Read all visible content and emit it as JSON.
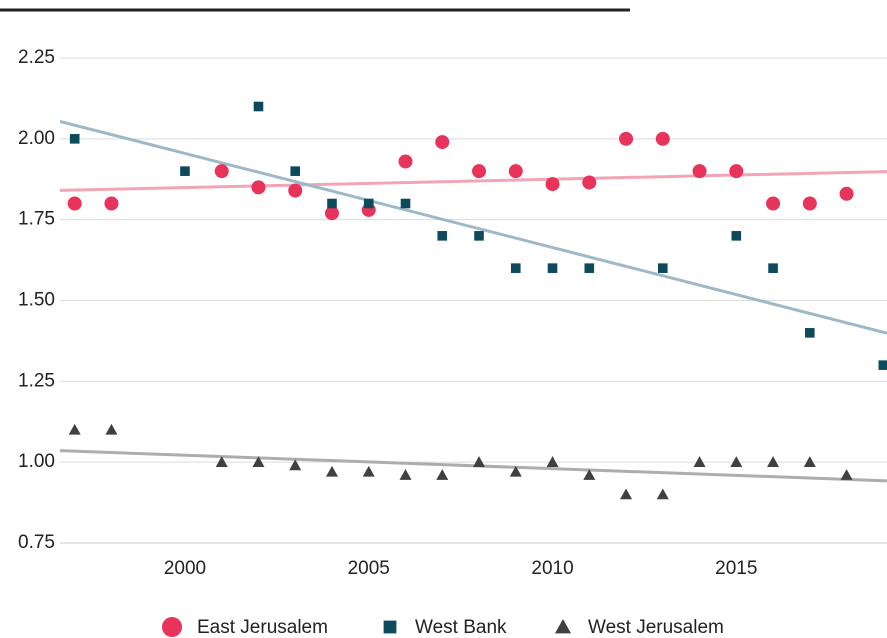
{
  "chart_data": {
    "type": "scatter",
    "xlim": [
      1996.6,
      2019.1
    ],
    "xticks": [
      2000,
      2005,
      2010,
      2015
    ],
    "ylim": [
      0.75,
      2.25
    ],
    "yticks": [
      0.75,
      {
        "value": 1,
        "label": "1.00"
      },
      1.25,
      {
        "value": 1.5,
        "label": "1.50"
      },
      1.75,
      {
        "value": 2,
        "label": "2.00"
      },
      2.25
    ],
    "grid": true,
    "trendline": true,
    "legend": "bottom",
    "series": [
      {
        "name": "East Jerusalem",
        "color": "#e8335a",
        "trend_color": "#f2a5b6",
        "marker": "circle",
        "x": [
          1997,
          1998,
          2001,
          2002,
          2003,
          2004,
          2005,
          2006,
          2007,
          2008,
          2009,
          2010,
          2011,
          2012,
          2013,
          2014,
          2015,
          2016,
          2017,
          2018
        ],
        "values": [
          1.8,
          1.8,
          1.9,
          1.85,
          1.84,
          1.77,
          1.78,
          1.93,
          1.99,
          1.9,
          1.9,
          1.86,
          1.865,
          2.0,
          2.0,
          1.9,
          1.9,
          1.8,
          1.8,
          1.83
        ]
      },
      {
        "name": "West Bank",
        "color": "#0d4a5e",
        "trend_color": "#9db9c7",
        "marker": "square",
        "x": [
          1997,
          2000,
          2002,
          2003,
          2004,
          2005,
          2006,
          2007,
          2008,
          2009,
          2010,
          2011,
          2013,
          2015,
          2016,
          2017,
          2019
        ],
        "values": [
          2.0,
          1.9,
          2.1,
          1.9,
          1.8,
          1.8,
          1.8,
          1.7,
          1.7,
          1.6,
          1.6,
          1.6,
          1.6,
          1.7,
          1.6,
          1.4,
          1.3
        ]
      },
      {
        "name": "West Jerusalem",
        "color": "#404040",
        "trend_color": "#adadad",
        "marker": "triangle",
        "x": [
          1997,
          1998,
          2001,
          2002,
          2003,
          2004,
          2005,
          2006,
          2007,
          2008,
          2009,
          2010,
          2011,
          2012,
          2013,
          2014,
          2015,
          2016,
          2017,
          2018
        ],
        "values": [
          1.1,
          1.1,
          1.0,
          1.0,
          0.99,
          0.97,
          0.97,
          0.96,
          0.96,
          1.0,
          0.97,
          1.0,
          0.96,
          0.9,
          0.9,
          1.0,
          1.0,
          1.0,
          1.0,
          0.96
        ]
      }
    ]
  }
}
